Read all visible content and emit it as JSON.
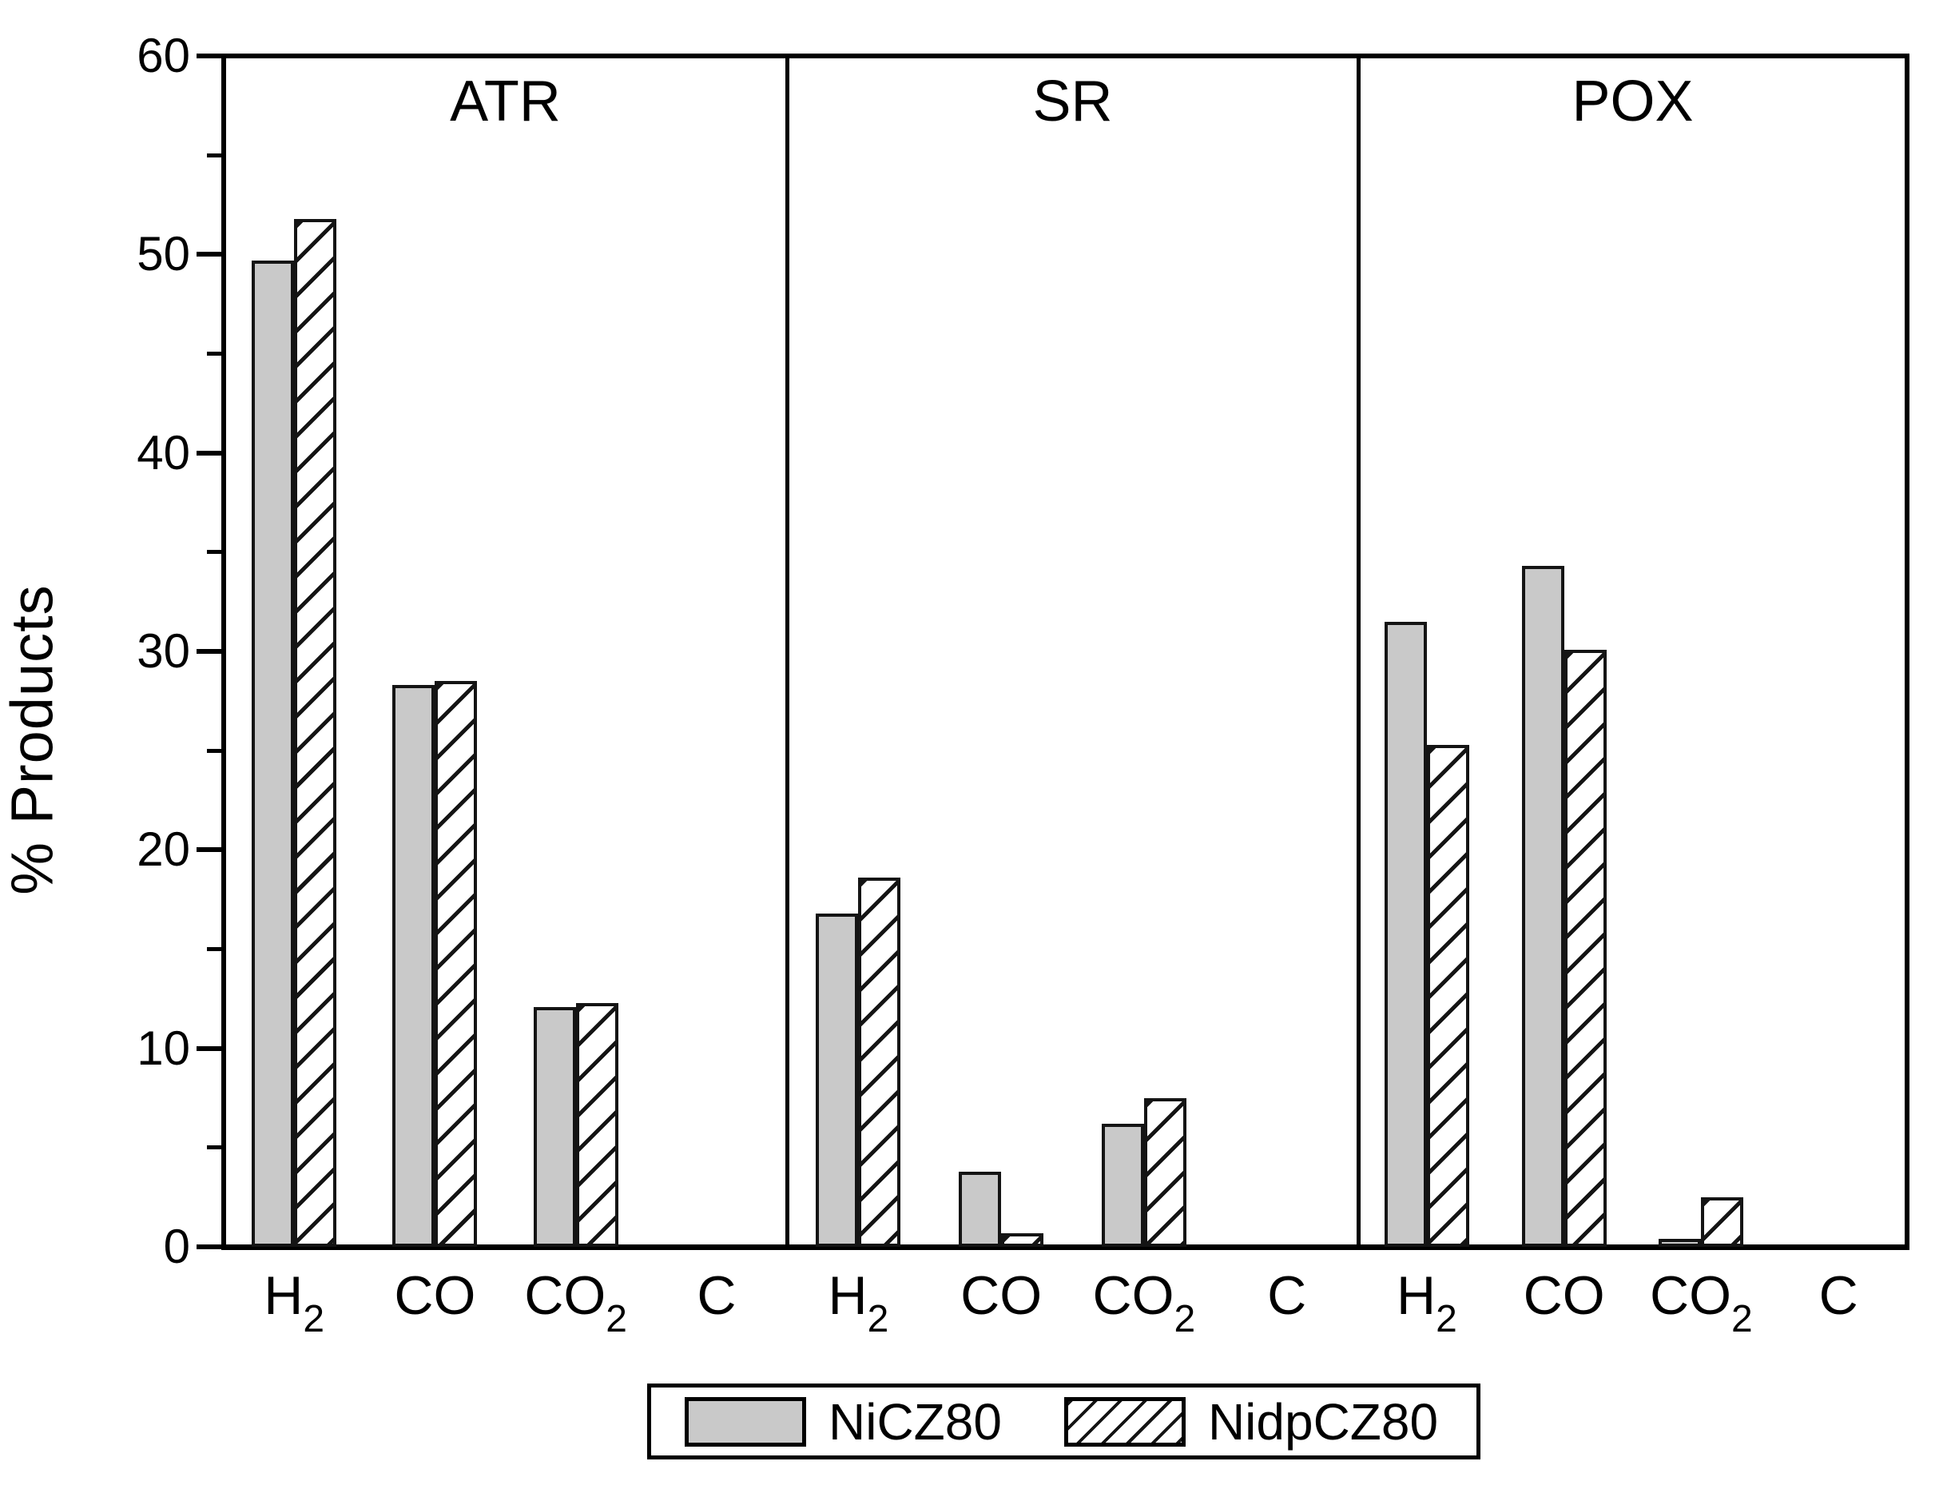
{
  "chart_data": {
    "type": "bar",
    "title": "",
    "ylabel": "% Products",
    "xlabel": "",
    "ylim": [
      0,
      60
    ],
    "ytick_major_step": 10,
    "ytick_minor_step": 5,
    "grid": false,
    "legend_position": "bottom-center",
    "panels": [
      "ATR",
      "SR",
      "POX"
    ],
    "categories": [
      {
        "text": "H",
        "sub": "2"
      },
      {
        "text": "CO",
        "sub": ""
      },
      {
        "text": "CO",
        "sub": "2"
      },
      {
        "text": "C",
        "sub": ""
      }
    ],
    "series": [
      {
        "name": "NiCZ80",
        "pattern": "solid-gray",
        "fill": "#c9c9c9"
      },
      {
        "name": "NidpCZ80",
        "pattern": "diagonal-hatch",
        "fill": "#ffffff"
      }
    ],
    "values": [
      {
        "panel": "ATR",
        "NiCZ80": [
          49.7,
          28.3,
          12.1,
          0
        ],
        "NidpCZ80": [
          51.8,
          28.5,
          12.3,
          0
        ]
      },
      {
        "panel": "SR",
        "NiCZ80": [
          16.8,
          3.8,
          6.2,
          0
        ],
        "NidpCZ80": [
          18.6,
          0.7,
          7.5,
          0
        ]
      },
      {
        "panel": "POX",
        "NiCZ80": [
          31.5,
          34.3,
          0.4,
          0
        ],
        "NidpCZ80": [
          25.3,
          30.1,
          2.5,
          0
        ]
      }
    ],
    "ytick_labels": [
      "0",
      "10",
      "20",
      "30",
      "40",
      "50",
      "60"
    ],
    "colors": {
      "axis": "#000000",
      "bar_outline": "#141414",
      "gray_fill": "#c9c9c9",
      "background": "#ffffff"
    }
  },
  "legend": {
    "items": [
      {
        "label": "NiCZ80",
        "pattern": "solid-gray"
      },
      {
        "label": "NidpCZ80",
        "pattern": "diagonal-hatch"
      }
    ]
  }
}
